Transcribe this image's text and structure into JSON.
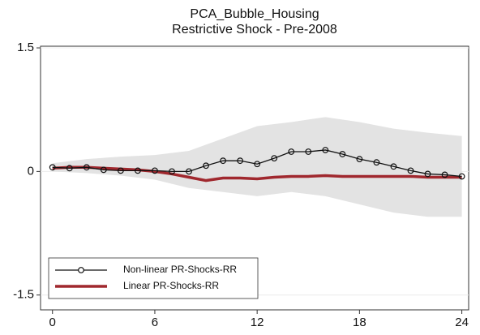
{
  "chart_data": {
    "type": "line",
    "title": "PCA_Bubble_Housing",
    "subtitle": "Restrictive Shock - Pre-2008",
    "x": [
      0,
      1,
      2,
      3,
      4,
      5,
      6,
      7,
      8,
      9,
      10,
      11,
      12,
      13,
      14,
      15,
      16,
      17,
      18,
      19,
      20,
      21,
      22,
      23,
      24
    ],
    "series": [
      {
        "name": "Non-linear PR-Shocks-RR",
        "color": "#111111",
        "values": [
          0.05,
          0.04,
          0.05,
          0.02,
          0.01,
          0.01,
          0.01,
          0,
          0,
          0.07,
          0.13,
          0.13,
          0.09,
          0.16,
          0.24,
          0.24,
          0.26,
          0.21,
          0.15,
          0.11,
          0.06,
          0.01,
          -0.03,
          -0.04,
          -0.06
        ]
      },
      {
        "name": "Linear PR-Shocks-RR",
        "color": "#a0282e",
        "values": [
          0.04,
          0.05,
          0.05,
          0.04,
          0.03,
          0.02,
          0,
          -0.03,
          -0.07,
          -0.11,
          -0.08,
          -0.08,
          -0.09,
          -0.07,
          -0.06,
          -0.06,
          -0.05,
          -0.06,
          -0.06,
          -0.06,
          -0.06,
          -0.06,
          -0.07,
          -0.07,
          -0.07
        ]
      }
    ],
    "band": {
      "color": "#e3e3e3",
      "x": [
        0,
        2,
        4,
        6,
        8,
        10,
        12,
        14,
        16,
        18,
        20,
        22,
        24
      ],
      "upper": [
        0.1,
        0.15,
        0.18,
        0.2,
        0.25,
        0.4,
        0.55,
        0.6,
        0.66,
        0.6,
        0.52,
        0.47,
        0.43
      ],
      "lower": [
        0,
        -0.02,
        -0.05,
        -0.1,
        -0.2,
        -0.25,
        -0.3,
        -0.25,
        -0.3,
        -0.4,
        -0.5,
        -0.55,
        -0.55
      ]
    },
    "xlim": [
      -0.7,
      24.4
    ],
    "xticks": [
      0,
      6,
      12,
      18,
      24
    ],
    "ylim": [
      -1.68,
      1.52
    ],
    "yticks": [
      -1.5,
      0,
      1.5
    ],
    "grid": true,
    "legend": "lower left"
  }
}
